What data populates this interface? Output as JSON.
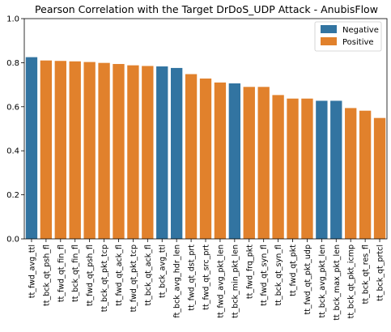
{
  "chart_data": {
    "type": "bar",
    "title": "Pearson Correlation with the Target DrDoS_UDP Attack - AnubisFlow",
    "xlabel": "",
    "ylabel": "",
    "ylim": [
      0,
      1.0
    ],
    "yticks": [
      "0.0",
      "0.2",
      "0.4",
      "0.6",
      "0.8",
      "1.0"
    ],
    "grid": false,
    "legend": {
      "placement": "top-right",
      "entries": [
        {
          "name": "Negative",
          "color": "#3274a1"
        },
        {
          "name": "Positive",
          "color": "#e1812c"
        }
      ]
    },
    "categories": [
      "tt_fwd_avg_ttl",
      "tt_bck_qt_psh_fl",
      "tt_fwd_qt_fin_fl",
      "tt_bck_qt_fin_fl",
      "tt_fwd_qt_psh_fl",
      "tt_bck_qt_pkt_tcp",
      "tt_fwd_qt_ack_fl",
      "tt_fwd_qt_pkt_tcp",
      "tt_bck_qt_ack_fl",
      "tt_bck_avg_ttl",
      "ft_bck_avg_hdr_len",
      "tt_fwd_qt_dst_prt",
      "tt_fwd_qt_src_prt",
      "tt_fwd_avg_pkt_len",
      "tt_bck_min_pkt_len",
      "tt_fwd_frq_pkt",
      "tt_fwd_qt_syn_fl",
      "tt_bck_qt_syn_fl",
      "tt_fwd_qt_pkt",
      "tt_fwd_qt_pkt_udp",
      "tt_bck_avg_pkt_len",
      "tt_bck_max_pkt_len",
      "tt_bck_qt_pkt_icmp",
      "tt_bck_qt_res_fl",
      "tt_bck_qt_prtcl"
    ],
    "values": [
      0.825,
      0.81,
      0.808,
      0.806,
      0.803,
      0.799,
      0.794,
      0.788,
      0.785,
      0.783,
      0.776,
      0.748,
      0.728,
      0.71,
      0.706,
      0.69,
      0.69,
      0.653,
      0.637,
      0.637,
      0.627,
      0.627,
      0.594,
      0.582,
      0.549
    ],
    "sign": [
      "Negative",
      "Positive",
      "Positive",
      "Positive",
      "Positive",
      "Positive",
      "Positive",
      "Positive",
      "Positive",
      "Negative",
      "Negative",
      "Positive",
      "Positive",
      "Positive",
      "Negative",
      "Positive",
      "Positive",
      "Positive",
      "Positive",
      "Positive",
      "Negative",
      "Negative",
      "Positive",
      "Positive",
      "Positive"
    ]
  }
}
